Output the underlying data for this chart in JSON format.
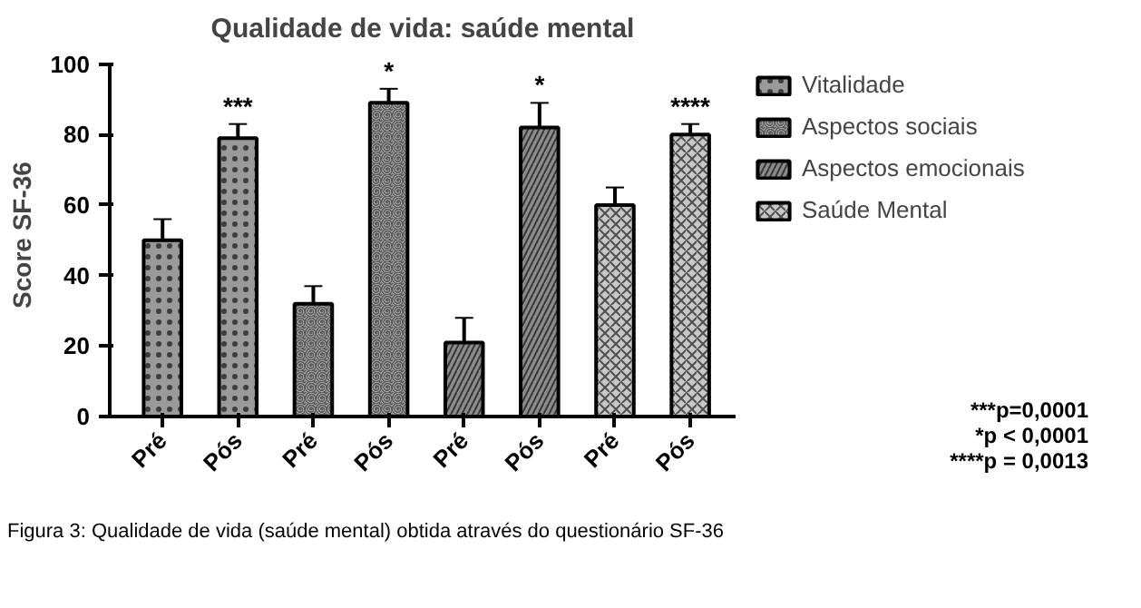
{
  "chart_data": {
    "type": "bar",
    "title": "Qualidade de vida: saúde mental",
    "ylabel": "Score SF-36",
    "categories": [
      "Pré",
      "Pós",
      "Pré",
      "Pós",
      "Pré",
      "Pós",
      "Pré",
      "Pós"
    ],
    "series": [
      {
        "name": "Vitalidade",
        "color": "#9a9a9a",
        "values": [
          50,
          79,
          null,
          null,
          null,
          null,
          null,
          null
        ],
        "errors": [
          6,
          4,
          null,
          null,
          null,
          null,
          null,
          null
        ],
        "value_labels": [
          null,
          "***",
          null,
          null,
          null,
          null,
          null,
          null
        ]
      },
      {
        "name": "Aspectos sociais",
        "color": "#e6e6e6",
        "values": [
          null,
          null,
          32,
          89,
          null,
          null,
          null,
          null
        ],
        "errors": [
          null,
          null,
          5,
          4,
          null,
          null,
          null,
          null
        ],
        "value_labels": [
          null,
          null,
          null,
          "*",
          null,
          null,
          null,
          null
        ]
      },
      {
        "name": "Aspectos emocionais",
        "color": "#8c8c8c",
        "values": [
          null,
          null,
          null,
          null,
          21,
          82,
          null,
          null
        ],
        "errors": [
          null,
          null,
          null,
          null,
          7,
          7,
          null,
          null
        ],
        "value_labels": [
          null,
          null,
          null,
          null,
          null,
          "*",
          null,
          null
        ]
      },
      {
        "name": "Saúde Mental",
        "color": "#c8c8c8",
        "values": [
          null,
          null,
          null,
          null,
          null,
          null,
          60,
          80
        ],
        "errors": [
          null,
          null,
          null,
          null,
          null,
          null,
          5,
          3
        ],
        "value_labels": [
          null,
          null,
          null,
          null,
          null,
          null,
          null,
          "****"
        ]
      }
    ],
    "ylim": [
      0,
      100
    ],
    "yticks": [
      0,
      20,
      40,
      60,
      80,
      100
    ],
    "grid": false,
    "legend": "top right",
    "annotations": [
      "***p=0,0001",
      "*p < 0,0001",
      "****p = 0,0013",
      "Figura 3: Qualidade de vida (saúde mental) obtida através do questionário SF-36"
    ]
  }
}
